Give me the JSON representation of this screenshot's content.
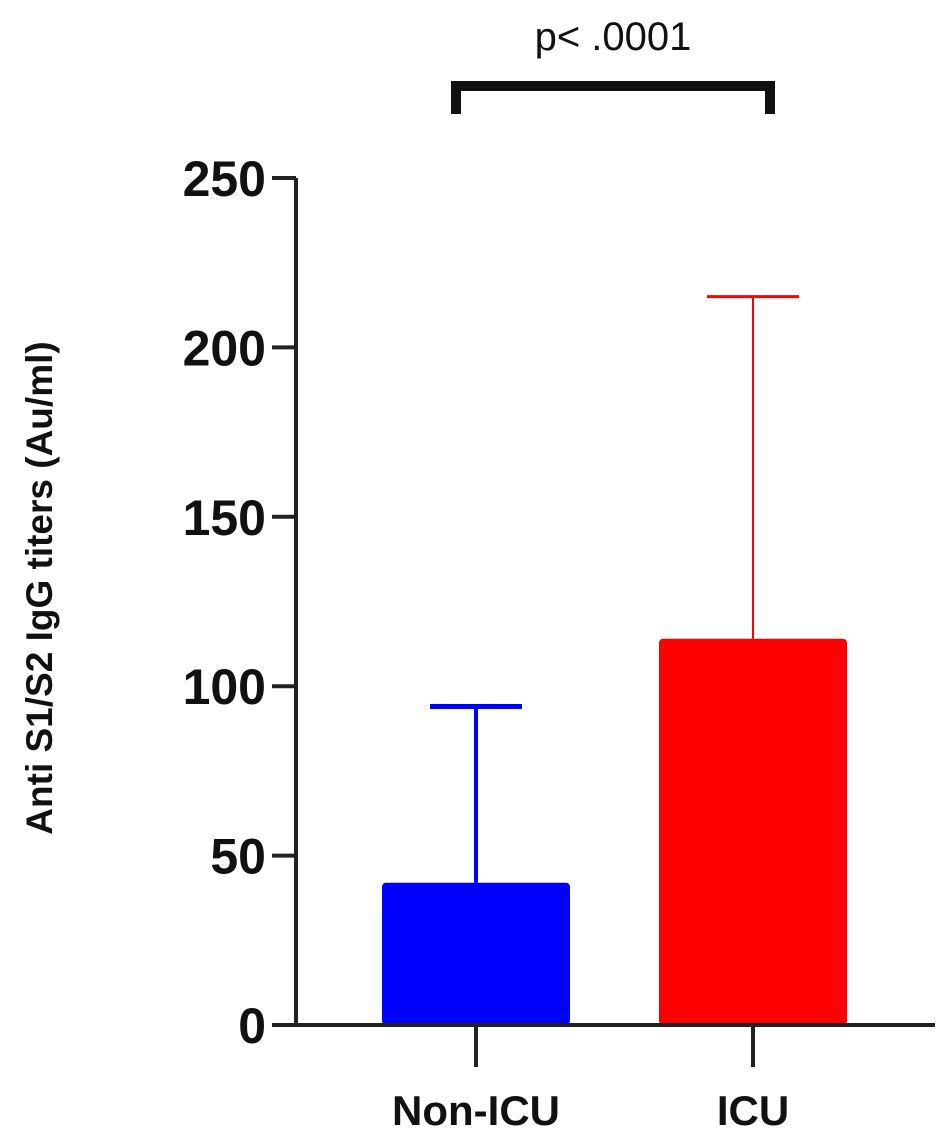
{
  "chart_data": {
    "type": "bar",
    "categories": [
      "Non-ICU",
      "ICU"
    ],
    "values": [
      42,
      114
    ],
    "error_upper": [
      94,
      215
    ],
    "colors": [
      "#0000ff",
      "#ff0000"
    ],
    "error_colors": [
      "#0000ff",
      "#ff0000"
    ],
    "ylabel": "Anti S1/S2 IgG titers (Au/ml)",
    "xlabel": "",
    "ylim": [
      0,
      250
    ],
    "yticks": [
      0,
      50,
      100,
      150,
      200,
      250
    ],
    "ytick_labels": [
      "0",
      "50",
      "100",
      "150",
      "200",
      "250"
    ],
    "annotation": "p< .0001",
    "grid": false,
    "legend": "none"
  }
}
